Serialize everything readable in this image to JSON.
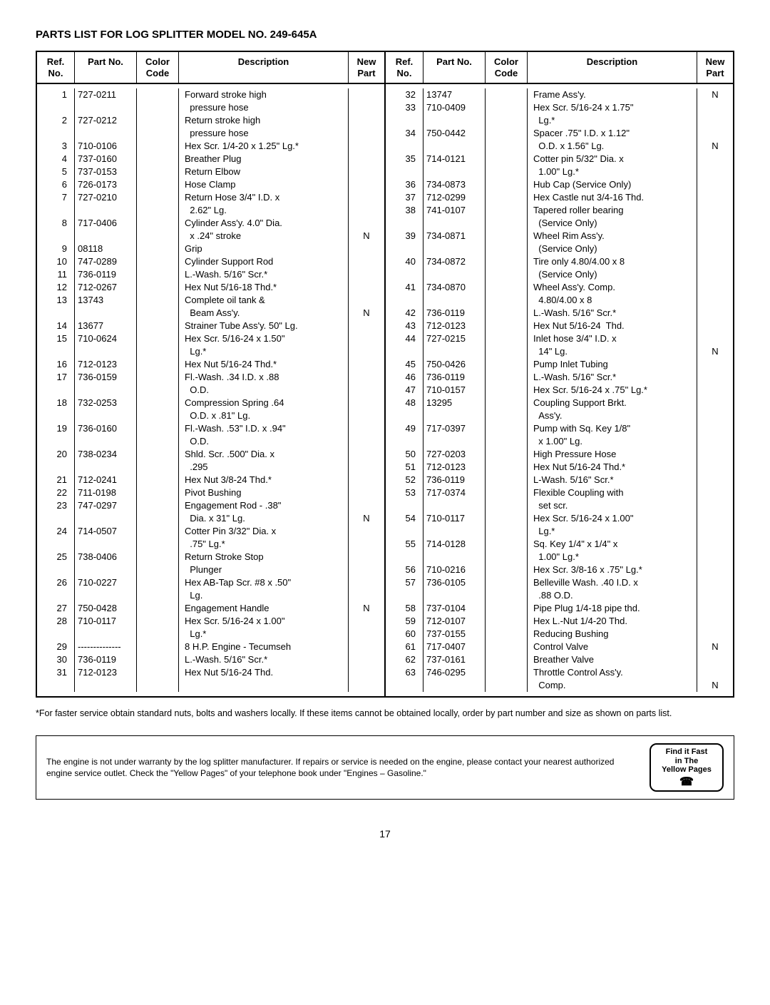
{
  "title": "PARTS LIST FOR LOG SPLITTER MODEL NO. 249-645A",
  "headers": {
    "ref": "Ref.\nNo.",
    "part": "Part\nNo.",
    "color": "Color\nCode",
    "desc": "Description",
    "new": "New\nPart"
  },
  "left": [
    {
      "ref": "1",
      "part": "727-0211",
      "desc": "Forward stroke high",
      "new": ""
    },
    {
      "ref": "",
      "part": "",
      "desc": "  pressure hose",
      "new": ""
    },
    {
      "ref": "2",
      "part": "727-0212",
      "desc": "Return stroke high",
      "new": ""
    },
    {
      "ref": "",
      "part": "",
      "desc": "  pressure hose",
      "new": ""
    },
    {
      "ref": "3",
      "part": "710-0106",
      "desc": "Hex Scr. 1/4-20 x 1.25\" Lg.*",
      "new": ""
    },
    {
      "ref": "4",
      "part": "737-0160",
      "desc": "Breather Plug",
      "new": ""
    },
    {
      "ref": "5",
      "part": "737-0153",
      "desc": "Return Elbow",
      "new": ""
    },
    {
      "ref": "6",
      "part": "726-0173",
      "desc": "Hose Clamp",
      "new": ""
    },
    {
      "ref": "7",
      "part": "727-0210",
      "desc": "Return Hose 3/4\" I.D. x",
      "new": ""
    },
    {
      "ref": "",
      "part": "",
      "desc": "  2.62\" Lg.",
      "new": ""
    },
    {
      "ref": "8",
      "part": "717-0406",
      "desc": "Cylinder Ass'y. 4.0\" Dia.",
      "new": ""
    },
    {
      "ref": "",
      "part": "",
      "desc": "  x .24\" stroke",
      "new": "N"
    },
    {
      "ref": "9",
      "part": "08118",
      "desc": "Grip",
      "new": ""
    },
    {
      "ref": "10",
      "part": "747-0289",
      "desc": "Cylinder Support Rod",
      "new": ""
    },
    {
      "ref": "11",
      "part": "736-0119",
      "desc": "L.-Wash. 5/16\" Scr.*",
      "new": ""
    },
    {
      "ref": "12",
      "part": "712-0267",
      "desc": "Hex Nut 5/16-18 Thd.*",
      "new": ""
    },
    {
      "ref": "13",
      "part": "13743",
      "desc": "Complete oil tank &",
      "new": ""
    },
    {
      "ref": "",
      "part": "",
      "desc": "  Beam Ass'y.",
      "new": "N"
    },
    {
      "ref": "14",
      "part": "13677",
      "desc": "Strainer Tube Ass'y. 50\" Lg.",
      "new": ""
    },
    {
      "ref": "15",
      "part": "710-0624",
      "desc": "Hex Scr. 5/16-24 x 1.50\"",
      "new": ""
    },
    {
      "ref": "",
      "part": "",
      "desc": "  Lg.*",
      "new": ""
    },
    {
      "ref": "16",
      "part": "712-0123",
      "desc": "Hex Nut 5/16-24 Thd.*",
      "new": ""
    },
    {
      "ref": "17",
      "part": "736-0159",
      "desc": "Fl.-Wash. .34 I.D. x .88",
      "new": ""
    },
    {
      "ref": "",
      "part": "",
      "desc": "  O.D.",
      "new": ""
    },
    {
      "ref": "18",
      "part": "732-0253",
      "desc": "Compression Spring .64",
      "new": ""
    },
    {
      "ref": "",
      "part": "",
      "desc": "  O.D. x .81\" Lg.",
      "new": ""
    },
    {
      "ref": "19",
      "part": "736-0160",
      "desc": "Fl.-Wash. .53\" I.D. x .94\"",
      "new": ""
    },
    {
      "ref": "",
      "part": "",
      "desc": "  O.D.",
      "new": ""
    },
    {
      "ref": "20",
      "part": "738-0234",
      "desc": "Shld. Scr. .500\" Dia. x",
      "new": ""
    },
    {
      "ref": "",
      "part": "",
      "desc": "  .295",
      "new": ""
    },
    {
      "ref": "21",
      "part": "712-0241",
      "desc": "Hex Nut 3/8-24 Thd.*",
      "new": ""
    },
    {
      "ref": "22",
      "part": "711-0198",
      "desc": "Pivot Bushing",
      "new": ""
    },
    {
      "ref": "23",
      "part": "747-0297",
      "desc": "Engagement Rod - .38\"",
      "new": ""
    },
    {
      "ref": "",
      "part": "",
      "desc": "  Dia. x 31\" Lg.",
      "new": "N"
    },
    {
      "ref": "24",
      "part": "714-0507",
      "desc": "Cotter Pin 3/32\" Dia. x",
      "new": ""
    },
    {
      "ref": "",
      "part": "",
      "desc": "  .75\" Lg.*",
      "new": ""
    },
    {
      "ref": "25",
      "part": "738-0406",
      "desc": "Return Stroke Stop",
      "new": ""
    },
    {
      "ref": "",
      "part": "",
      "desc": "  Plunger",
      "new": ""
    },
    {
      "ref": "26",
      "part": "710-0227",
      "desc": "Hex AB-Tap Scr. #8 x .50\"",
      "new": ""
    },
    {
      "ref": "",
      "part": "",
      "desc": "  Lg.",
      "new": ""
    },
    {
      "ref": "27",
      "part": "750-0428",
      "desc": "Engagement Handle",
      "new": "N"
    },
    {
      "ref": "28",
      "part": "710-0117",
      "desc": "Hex Scr. 5/16-24 x 1.00\"",
      "new": ""
    },
    {
      "ref": "",
      "part": "",
      "desc": "  Lg.*",
      "new": ""
    },
    {
      "ref": "29",
      "part": "--------------",
      "desc": "8 H.P. Engine - Tecumseh",
      "new": ""
    },
    {
      "ref": "30",
      "part": "736-0119",
      "desc": "L.-Wash. 5/16\" Scr.*",
      "new": ""
    },
    {
      "ref": "31",
      "part": "712-0123",
      "desc": "Hex Nut 5/16-24 Thd.",
      "new": ""
    }
  ],
  "right": [
    {
      "ref": "32",
      "part": "13747",
      "desc": "Frame Ass'y.",
      "new": "N"
    },
    {
      "ref": "33",
      "part": "710-0409",
      "desc": "Hex Scr. 5/16-24 x 1.75\"",
      "new": ""
    },
    {
      "ref": "",
      "part": "",
      "desc": "  Lg.*",
      "new": ""
    },
    {
      "ref": "34",
      "part": "750-0442",
      "desc": "Spacer .75\" I.D. x 1.12\"",
      "new": ""
    },
    {
      "ref": "",
      "part": "",
      "desc": "  O.D. x 1.56\" Lg.",
      "new": "N"
    },
    {
      "ref": "35",
      "part": "714-0121",
      "desc": "Cotter pin 5/32\" Dia. x",
      "new": ""
    },
    {
      "ref": "",
      "part": "",
      "desc": "  1.00\" Lg.*",
      "new": ""
    },
    {
      "ref": "36",
      "part": "734-0873",
      "desc": "Hub Cap (Service Only)",
      "new": ""
    },
    {
      "ref": "37",
      "part": "712-0299",
      "desc": "Hex Castle nut 3/4-16 Thd.",
      "new": ""
    },
    {
      "ref": "38",
      "part": "741-0107",
      "desc": "Tapered roller bearing",
      "new": ""
    },
    {
      "ref": "",
      "part": "",
      "desc": "  (Service Only)",
      "new": ""
    },
    {
      "ref": "39",
      "part": "734-0871",
      "desc": "Wheel Rim Ass'y.",
      "new": ""
    },
    {
      "ref": "",
      "part": "",
      "desc": "  (Service Only)",
      "new": ""
    },
    {
      "ref": "40",
      "part": "734-0872",
      "desc": "Tire only 4.80/4.00 x 8",
      "new": ""
    },
    {
      "ref": "",
      "part": "",
      "desc": "  (Service Only)",
      "new": ""
    },
    {
      "ref": "41",
      "part": "734-0870",
      "desc": "Wheel Ass'y. Comp.",
      "new": ""
    },
    {
      "ref": "",
      "part": "",
      "desc": "  4.80/4.00 x 8",
      "new": ""
    },
    {
      "ref": "42",
      "part": "736-0119",
      "desc": "L.-Wash. 5/16\" Scr.*",
      "new": ""
    },
    {
      "ref": "43",
      "part": "712-0123",
      "desc": "Hex Nut 5/16-24  Thd.",
      "new": ""
    },
    {
      "ref": "44",
      "part": "727-0215",
      "desc": "Inlet hose 3/4\" I.D. x",
      "new": ""
    },
    {
      "ref": "",
      "part": "",
      "desc": "  14\" Lg.",
      "new": "N"
    },
    {
      "ref": "45",
      "part": "750-0426",
      "desc": "Pump Inlet Tubing",
      "new": ""
    },
    {
      "ref": "46",
      "part": "736-0119",
      "desc": "L.-Wash. 5/16\" Scr.*",
      "new": ""
    },
    {
      "ref": "47",
      "part": "710-0157",
      "desc": "Hex Scr. 5/16-24 x .75\" Lg.*",
      "new": ""
    },
    {
      "ref": "48",
      "part": "13295",
      "desc": "Coupling Support Brkt.",
      "new": ""
    },
    {
      "ref": "",
      "part": "",
      "desc": "  Ass'y.",
      "new": ""
    },
    {
      "ref": "49",
      "part": "717-0397",
      "desc": "Pump with Sq. Key 1/8\"",
      "new": ""
    },
    {
      "ref": "",
      "part": "",
      "desc": "  x 1.00\" Lg.",
      "new": ""
    },
    {
      "ref": "50",
      "part": "727-0203",
      "desc": "High Pressure Hose",
      "new": ""
    },
    {
      "ref": "51",
      "part": "712-0123",
      "desc": "Hex Nut 5/16-24 Thd.*",
      "new": ""
    },
    {
      "ref": "52",
      "part": "736-0119",
      "desc": "L-Wash. 5/16\" Scr.*",
      "new": ""
    },
    {
      "ref": "53",
      "part": "717-0374",
      "desc": "Flexible Coupling with",
      "new": ""
    },
    {
      "ref": "",
      "part": "",
      "desc": "  set scr.",
      "new": ""
    },
    {
      "ref": "54",
      "part": "710-0117",
      "desc": "Hex Scr. 5/16-24 x 1.00\"",
      "new": ""
    },
    {
      "ref": "",
      "part": "",
      "desc": "  Lg.*",
      "new": ""
    },
    {
      "ref": "55",
      "part": "714-0128",
      "desc": "Sq. Key 1/4\" x 1/4\" x",
      "new": ""
    },
    {
      "ref": "",
      "part": "",
      "desc": "  1.00\" Lg.*",
      "new": ""
    },
    {
      "ref": "56",
      "part": "710-0216",
      "desc": "Hex Scr. 3/8-16 x .75\" Lg.*",
      "new": ""
    },
    {
      "ref": "57",
      "part": "736-0105",
      "desc": "Belleville Wash. .40 I.D. x",
      "new": ""
    },
    {
      "ref": "",
      "part": "",
      "desc": "  .88 O.D.",
      "new": ""
    },
    {
      "ref": "58",
      "part": "737-0104",
      "desc": "Pipe Plug 1/4-18 pipe thd.",
      "new": ""
    },
    {
      "ref": "59",
      "part": "712-0107",
      "desc": "Hex L.-Nut 1/4-20 Thd.",
      "new": ""
    },
    {
      "ref": "60",
      "part": "737-0155",
      "desc": "Reducing Bushing",
      "new": ""
    },
    {
      "ref": "61",
      "part": "717-0407",
      "desc": "Control Valve",
      "new": "N"
    },
    {
      "ref": "62",
      "part": "737-0161",
      "desc": "Breather Valve",
      "new": ""
    },
    {
      "ref": "63",
      "part": "746-0295",
      "desc": "Throttle Control Ass'y.",
      "new": ""
    },
    {
      "ref": "",
      "part": "",
      "desc": "  Comp.",
      "new": "N"
    }
  ],
  "footnote": "*For faster service obtain standard nuts, bolts and washers locally. If these items cannot be obtained locally, order by part number and size as shown on parts list.",
  "notice": "The engine is not under warranty by the log splitter manufacturer. If repairs or service is needed on the engine, please contact your nearest authorized engine service outlet. Check the \"Yellow Pages\" of your telephone book under \"Engines – Gasoline.\"",
  "badge": {
    "l1": "Find it Fast",
    "l2": "in The",
    "l3": "Yellow Pages"
  },
  "pageNum": "17"
}
